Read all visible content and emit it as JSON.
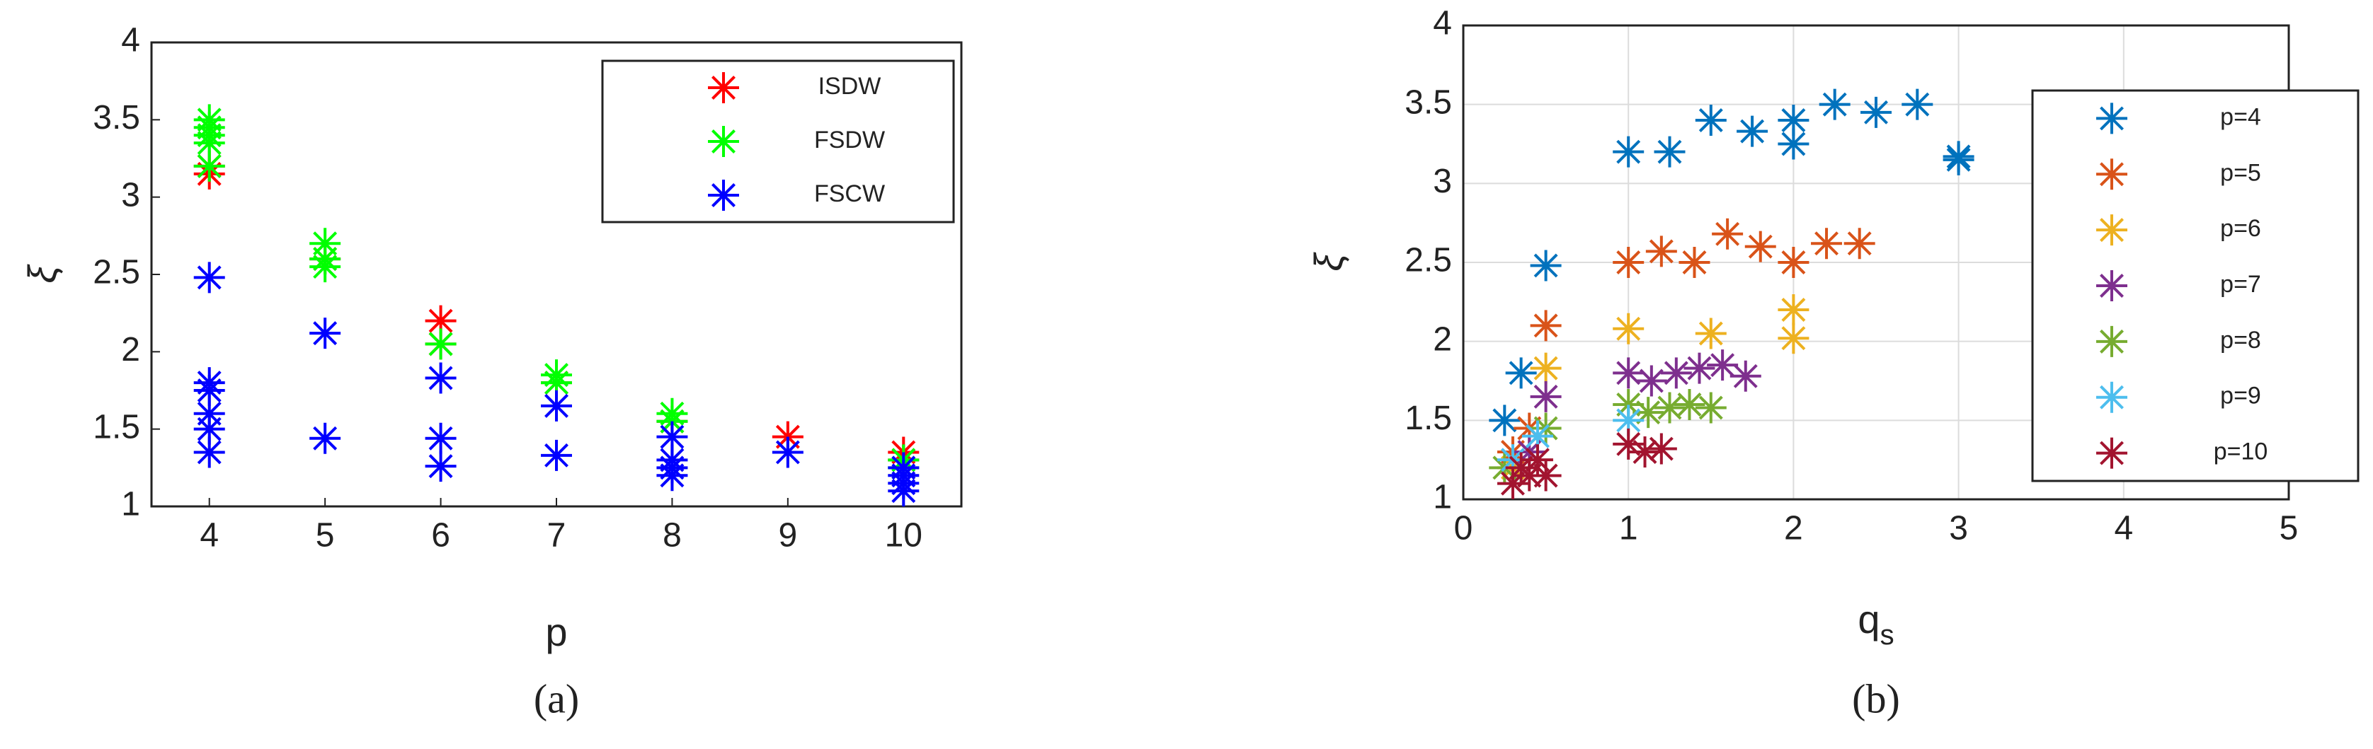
{
  "chart_data": [
    {
      "type": "scatter",
      "caption": "(a)",
      "xlabel": "p",
      "ylabel": "ξ",
      "xlim": [
        3.5,
        10.5
      ],
      "xticks": [
        4,
        5,
        6,
        7,
        8,
        9,
        10
      ],
      "ylim": [
        1,
        4
      ],
      "yticks": [
        1,
        1.5,
        2,
        2.5,
        3,
        3.5,
        4
      ],
      "grid": false,
      "legend": "upper right",
      "series": [
        {
          "name": "ISDW",
          "color": "#ff0000",
          "x": [
            4,
            4,
            5,
            6,
            6,
            7,
            8,
            9,
            10,
            10
          ],
          "values": [
            3.15,
            3.2,
            2.6,
            2.2,
            2.05,
            1.8,
            1.55,
            1.45,
            1.35,
            1.3
          ]
        },
        {
          "name": "FSDW",
          "color": "#00ff00",
          "x": [
            4,
            4,
            4,
            4,
            4,
            5,
            5,
            5,
            6,
            7,
            7,
            8,
            8,
            10,
            10
          ],
          "values": [
            3.5,
            3.45,
            3.4,
            3.35,
            3.2,
            2.7,
            2.6,
            2.55,
            2.05,
            1.85,
            1.8,
            1.6,
            1.55,
            1.3,
            1.25
          ]
        },
        {
          "name": "FSCW",
          "color": "#0000ff",
          "x": [
            4,
            4,
            4,
            4,
            4,
            4,
            5,
            5,
            6,
            6,
            6,
            7,
            7,
            8,
            8,
            8,
            8,
            9,
            10,
            10,
            10,
            10
          ],
          "values": [
            2.48,
            1.8,
            1.75,
            1.6,
            1.5,
            1.35,
            2.12,
            1.44,
            1.83,
            1.44,
            1.26,
            1.65,
            1.33,
            1.45,
            1.3,
            1.25,
            1.2,
            1.35,
            1.25,
            1.2,
            1.15,
            1.1
          ]
        }
      ]
    },
    {
      "type": "scatter",
      "caption": "(b)",
      "xlabel": "q",
      "xlabel_subscript": "s",
      "ylabel": "ξ",
      "xlim": [
        0,
        5
      ],
      "xticks": [
        0,
        1,
        2,
        3,
        4,
        5
      ],
      "ylim": [
        1,
        4
      ],
      "yticks": [
        1,
        1.5,
        2,
        2.5,
        3,
        3.5,
        4
      ],
      "grid": true,
      "legend": "right",
      "series": [
        {
          "name": "p=4",
          "color": "#0072bd",
          "x": [
            0.25,
            0.35,
            0.5,
            1,
            1.25,
            1.5,
            1.75,
            2,
            2,
            2.25,
            2.5,
            2.75,
            3,
            3
          ],
          "values": [
            1.5,
            1.8,
            2.48,
            3.2,
            3.2,
            3.4,
            3.33,
            3.4,
            3.25,
            3.5,
            3.45,
            3.5,
            3.15,
            3.17
          ]
        },
        {
          "name": "p=5",
          "color": "#d95319",
          "x": [
            0.3,
            0.4,
            0.5,
            1,
            1.2,
            1.4,
            1.6,
            1.8,
            2,
            2.2,
            2.4
          ],
          "values": [
            1.3,
            1.45,
            2.1,
            2.5,
            2.57,
            2.5,
            2.68,
            2.6,
            2.5,
            2.62,
            2.62
          ]
        },
        {
          "name": "p=6",
          "color": "#edb120",
          "x": [
            0.3,
            0.5,
            1,
            1.5,
            2,
            2
          ],
          "values": [
            1.2,
            1.83,
            2.08,
            2.05,
            2.2,
            2.02
          ]
        },
        {
          "name": "p=7",
          "color": "#7e2f8e",
          "x": [
            0.4,
            0.5,
            1,
            1.14,
            1.29,
            1.43,
            1.57,
            1.71
          ],
          "values": [
            1.3,
            1.65,
            1.8,
            1.75,
            1.8,
            1.83,
            1.85,
            1.78
          ]
        },
        {
          "name": "p=8",
          "color": "#77ac30",
          "x": [
            0.25,
            0.5,
            1,
            1.12,
            1.25,
            1.37,
            1.5
          ],
          "values": [
            1.2,
            1.45,
            1.6,
            1.55,
            1.58,
            1.6,
            1.58
          ]
        },
        {
          "name": "p=9",
          "color": "#4dbeee",
          "x": [
            0.3,
            0.45,
            1
          ],
          "values": [
            1.25,
            1.4,
            1.5
          ]
        },
        {
          "name": "p=10",
          "color": "#a2142f",
          "x": [
            0.3,
            0.35,
            0.4,
            0.45,
            0.5,
            1,
            1.1,
            1.2
          ],
          "values": [
            1.1,
            1.2,
            1.15,
            1.25,
            1.15,
            1.35,
            1.3,
            1.32
          ]
        }
      ]
    }
  ]
}
